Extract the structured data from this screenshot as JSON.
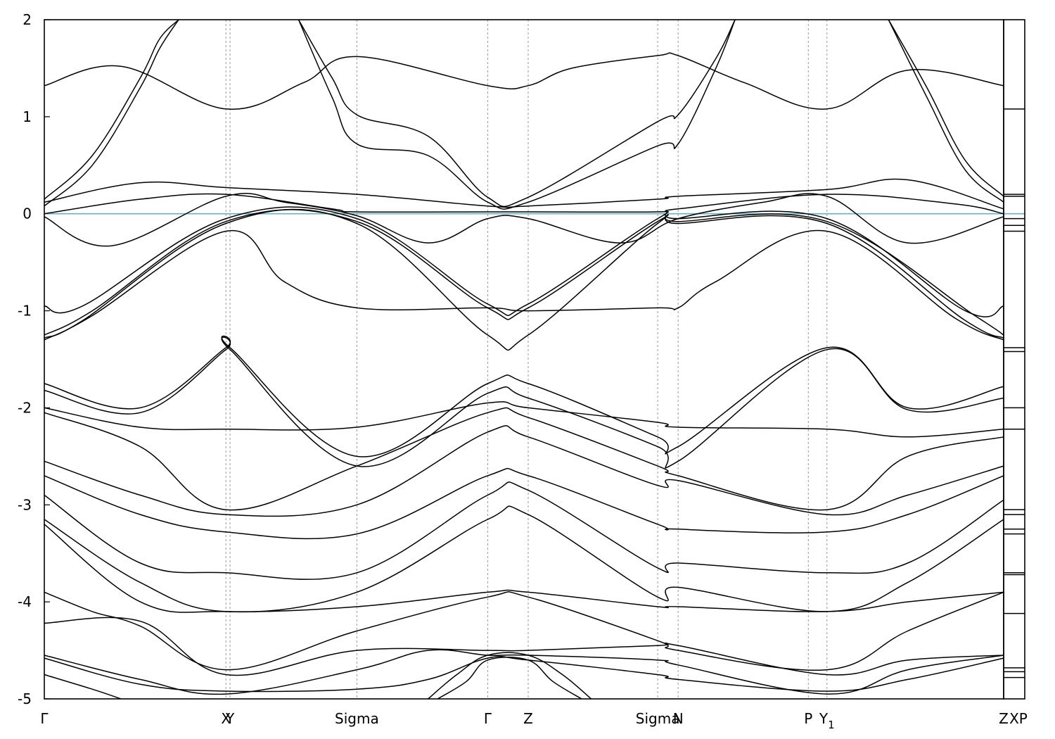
{
  "chart_data": {
    "type": "line",
    "title": "",
    "xlabel": "",
    "ylabel": "",
    "ylim": [
      -5,
      2
    ],
    "yticks": [
      2,
      1,
      0,
      -1,
      -2,
      -3,
      -4,
      -5
    ],
    "ytick_labels": [
      "2",
      "1",
      "0",
      "-1",
      "-2",
      "-3",
      "-4",
      "-5"
    ],
    "x_range": [
      0,
      1
    ],
    "kpoints": [
      {
        "label": "Γ",
        "x": 0.0
      },
      {
        "label": "X",
        "x": 0.1893
      },
      {
        "label": "Y",
        "x": 0.1936
      },
      {
        "label": "Sigma",
        "x": 0.3258
      },
      {
        "label": "Γ",
        "x": 0.4622
      },
      {
        "label": "Z",
        "x": 0.5044
      },
      {
        "label": "Sigma",
        "x": 0.6394
      },
      {
        "label": "N",
        "x": 0.6607
      },
      {
        "label": "P",
        "x": 0.7964
      },
      {
        "label": "Y",
        "label_sub": "1",
        "x": 0.8158
      },
      {
        "label": "Z",
        "x": 1.0
      }
    ],
    "side_panel_label": "XP",
    "side_panel_levels": [
      1.08,
      0.2,
      0.18,
      -0.05,
      -0.12,
      -0.18,
      -1.38,
      -1.42,
      -2.0,
      -2.22,
      -3.05,
      -3.1,
      -3.25,
      -3.3,
      -3.7,
      -3.72,
      -4.12,
      -4.68,
      -4.72,
      -4.78
    ],
    "fermi_level": 0,
    "series": [
      {
        "x": [
          0.0,
          0.05,
          0.1,
          0.12,
          0.14
        ],
        "y": [
          0.15,
          0.6,
          1.4,
          1.8,
          2.0
        ]
      },
      {
        "x": [
          0.0,
          0.05,
          0.1,
          0.12,
          0.14
        ],
        "y": [
          0.08,
          0.5,
          1.3,
          1.7,
          2.0
        ]
      },
      {
        "x": [
          0.0,
          0.08,
          0.1893,
          0.27,
          0.3258,
          0.4622,
          0.5044,
          0.55,
          0.6394,
          0.6607,
          0.73,
          0.8158,
          0.9,
          1.0
        ],
        "y": [
          1.32,
          1.52,
          1.08,
          1.35,
          1.62,
          1.32,
          1.32,
          1.5,
          1.63,
          1.63,
          1.35,
          1.08,
          1.48,
          1.32
        ]
      },
      {
        "x": [
          0.265,
          0.3,
          0.3258,
          0.4,
          0.4622,
          0.5044,
          0.6394,
          0.6607,
          0.7,
          0.72
        ],
        "y": [
          2.0,
          1.4,
          1.02,
          0.8,
          0.17,
          0.17,
          0.95,
          1.02,
          1.6,
          2.0
        ]
      },
      {
        "x": [
          0.265,
          0.3,
          0.3258,
          0.4,
          0.4622,
          0.5044,
          0.6394,
          0.6607,
          0.7,
          0.72
        ],
        "y": [
          2.0,
          1.2,
          0.72,
          0.6,
          0.12,
          0.12,
          0.7,
          0.72,
          1.5,
          2.0
        ]
      },
      {
        "x": [
          0.88,
          0.92,
          0.96,
          1.0
        ],
        "y": [
          2.0,
          1.2,
          0.45,
          0.12
        ]
      },
      {
        "x": [
          0.88,
          0.92,
          0.96,
          1.0
        ],
        "y": [
          2.0,
          1.3,
          0.55,
          0.18
        ]
      },
      {
        "x": [
          0.0,
          0.1,
          0.1893,
          0.3258,
          0.4622,
          0.5044,
          0.6394,
          0.6607,
          0.8158,
          0.9,
          1.0
        ],
        "y": [
          0.12,
          0.32,
          0.27,
          0.2,
          0.08,
          0.08,
          0.15,
          0.18,
          0.25,
          0.35,
          0.05
        ]
      },
      {
        "x": [
          0.0,
          0.07,
          0.1893,
          0.25,
          0.3258,
          0.4,
          0.4622,
          0.5044,
          0.6,
          0.6607,
          0.75,
          0.8158,
          0.9,
          1.0
        ],
        "y": [
          -0.03,
          -0.33,
          0.18,
          0.12,
          -0.02,
          -0.3,
          -0.05,
          -0.05,
          -0.3,
          -0.05,
          0.12,
          0.18,
          -0.3,
          -0.03
        ]
      },
      {
        "x": [
          0.0,
          0.1,
          0.1893,
          0.3,
          0.3258,
          0.4622,
          0.5044,
          0.6394,
          0.6607,
          0.8158,
          0.95,
          1.0
        ],
        "y": [
          0.0,
          0.15,
          0.2,
          0.05,
          0.02,
          0.02,
          0.02,
          0.02,
          0.05,
          0.2,
          0.1,
          0.0
        ]
      },
      {
        "x": [
          0.0,
          0.04,
          0.1893,
          0.3258,
          0.4622,
          0.5044,
          0.6394,
          0.6607,
          0.8158,
          0.96,
          1.0
        ],
        "y": [
          -0.95,
          -0.95,
          -0.05,
          -0.05,
          -0.93,
          -0.93,
          -0.05,
          -0.05,
          -0.05,
          -1.0,
          -0.95
        ]
      },
      {
        "x": [
          0.0,
          0.05,
          0.1893,
          0.3258,
          0.4622,
          0.5044,
          0.6394,
          0.6607,
          0.8158,
          0.97,
          1.0
        ],
        "y": [
          -1.25,
          -1.0,
          -0.08,
          -0.08,
          -0.97,
          -0.97,
          -0.08,
          -0.08,
          -0.08,
          -1.05,
          -1.25
        ]
      },
      {
        "x": [
          0.0,
          0.05,
          0.1893,
          0.25,
          0.3258,
          0.4622,
          0.5044,
          0.6394,
          0.6607,
          0.7,
          0.8158,
          0.95,
          1.0
        ],
        "y": [
          -1.3,
          -1.05,
          -0.18,
          -0.7,
          -0.97,
          -0.97,
          -1.0,
          -0.97,
          -0.97,
          -0.7,
          -0.18,
          -1.08,
          -1.3
        ]
      },
      {
        "x": [
          0.0,
          0.04,
          0.1893,
          0.3258,
          0.4622,
          0.5044,
          0.6394,
          0.6607,
          0.8158,
          0.96,
          1.0
        ],
        "y": [
          -1.28,
          -1.1,
          -0.1,
          -0.1,
          -1.25,
          -1.25,
          -0.1,
          -0.1,
          -0.1,
          -1.1,
          -1.28
        ]
      },
      {
        "x": [
          0.0,
          0.1,
          0.1893,
          0.1936,
          0.3258,
          0.4622,
          0.5044,
          0.6394,
          0.6607,
          0.8158,
          0.9,
          1.0
        ],
        "y": [
          -1.75,
          -2.0,
          -1.38,
          -1.38,
          -2.5,
          -1.75,
          -1.75,
          -2.3,
          -2.4,
          -1.38,
          -2.0,
          -1.78
        ]
      },
      {
        "x": [
          0.0,
          0.1,
          0.1893,
          0.1936,
          0.3258,
          0.4622,
          0.5044,
          0.6394,
          0.6607,
          0.8158,
          0.9,
          1.0
        ],
        "y": [
          -1.82,
          -2.05,
          -1.4,
          -1.4,
          -2.6,
          -1.85,
          -1.9,
          -2.4,
          -2.55,
          -1.4,
          -2.02,
          -1.9
        ]
      },
      {
        "x": [
          0.0,
          0.1,
          0.1893,
          0.3258,
          0.4622,
          0.5044,
          0.6394,
          0.6607,
          0.8158,
          0.9,
          1.0
        ],
        "y": [
          -2.0,
          -2.2,
          -2.22,
          -2.2,
          -1.95,
          -2.0,
          -2.15,
          -2.2,
          -2.22,
          -2.3,
          -2.22
        ]
      },
      {
        "x": [
          0.0,
          0.1,
          0.1893,
          0.3258,
          0.4622,
          0.5044,
          0.6394,
          0.6607,
          0.8158,
          0.9,
          1.0
        ],
        "y": [
          -2.05,
          -2.4,
          -3.05,
          -2.6,
          -2.05,
          -2.1,
          -2.6,
          -2.7,
          -3.05,
          -2.5,
          -2.3
        ]
      },
      {
        "x": [
          0.0,
          0.1,
          0.1893,
          0.3258,
          0.4622,
          0.5044,
          0.6394,
          0.6607,
          0.8158,
          0.9,
          1.0
        ],
        "y": [
          -2.55,
          -2.9,
          -3.1,
          -3.0,
          -2.25,
          -2.3,
          -2.8,
          -2.75,
          -3.1,
          -2.9,
          -2.6
        ]
      },
      {
        "x": [
          0.0,
          0.1,
          0.1893,
          0.3258,
          0.4622,
          0.5044,
          0.6394,
          0.6607,
          0.8158,
          0.9,
          1.0
        ],
        "y": [
          -2.7,
          -3.1,
          -3.28,
          -3.3,
          -2.7,
          -2.7,
          -3.2,
          -3.25,
          -3.28,
          -3.1,
          -2.7
        ]
      },
      {
        "x": [
          0.0,
          0.1,
          0.1893,
          0.3258,
          0.4622,
          0.5044,
          0.6394,
          0.6607,
          0.8158,
          0.9,
          1.0
        ],
        "y": [
          -2.9,
          -3.6,
          -3.7,
          -3.7,
          -2.9,
          -2.85,
          -3.65,
          -3.6,
          -3.7,
          -3.6,
          -2.95
        ]
      },
      {
        "x": [
          0.0,
          0.1,
          0.1893,
          0.3258,
          0.4622,
          0.5044,
          0.6394,
          0.6607,
          0.8158,
          0.9,
          1.0
        ],
        "y": [
          -3.15,
          -3.8,
          -4.1,
          -3.9,
          -3.15,
          -3.1,
          -3.95,
          -3.85,
          -4.1,
          -3.8,
          -3.15
        ]
      },
      {
        "x": [
          0.0,
          0.1,
          0.1893,
          0.3258,
          0.4622,
          0.5044,
          0.6394,
          0.6607,
          0.8158,
          0.9,
          1.0
        ],
        "y": [
          -3.2,
          -4.0,
          -4.1,
          -4.05,
          -3.9,
          -3.9,
          -4.05,
          -4.05,
          -4.1,
          -4.0,
          -3.9
        ]
      },
      {
        "x": [
          0.0,
          0.05,
          0.1,
          0.1893,
          0.3258,
          0.4622,
          0.5044,
          0.6394,
          0.6607,
          0.8158,
          0.9,
          1.0
        ],
        "y": [
          -3.9,
          -4.1,
          -4.25,
          -4.7,
          -4.3,
          -3.95,
          -3.95,
          -4.4,
          -4.5,
          -4.7,
          -4.3,
          -3.9
        ]
      },
      {
        "x": [
          0.0,
          0.1,
          0.1893,
          0.3258,
          0.4622,
          0.5044,
          0.6394,
          0.6607,
          0.8158,
          0.9,
          1.0
        ],
        "y": [
          -4.22,
          -4.2,
          -4.75,
          -4.5,
          -4.5,
          -4.5,
          -4.45,
          -4.45,
          -4.75,
          -4.6,
          -4.55
        ]
      },
      {
        "x": [
          0.0,
          0.1,
          0.1893,
          0.3258,
          0.4,
          0.4622,
          0.5044,
          0.6394,
          0.6607,
          0.8158,
          0.9,
          1.0
        ],
        "y": [
          -4.55,
          -4.8,
          -4.95,
          -4.7,
          -4.5,
          -4.55,
          -4.55,
          -4.6,
          -4.65,
          -4.95,
          -4.7,
          -4.55
        ]
      },
      {
        "x": [
          0.0,
          0.1,
          0.1893,
          0.3258,
          0.4,
          0.4622,
          0.5044,
          0.6394,
          0.6607,
          0.8158,
          0.9,
          1.0
        ],
        "y": [
          -4.58,
          -4.85,
          -4.92,
          -4.9,
          -4.8,
          -4.58,
          -4.6,
          -4.75,
          -4.8,
          -4.92,
          -4.8,
          -4.58
        ]
      },
      {
        "x": [
          0.0,
          0.05,
          0.08
        ],
        "y": [
          -4.75,
          -4.9,
          -5.0
        ]
      },
      {
        "x": [
          0.4,
          0.43,
          0.4622,
          0.5044,
          0.54,
          0.57
        ],
        "y": [
          -5.0,
          -4.75,
          -4.55,
          -4.55,
          -4.75,
          -5.0
        ]
      },
      {
        "x": [
          0.41,
          0.44,
          0.4622,
          0.5044,
          0.53,
          0.56
        ],
        "y": [
          -5.0,
          -4.82,
          -4.6,
          -4.6,
          -4.82,
          -5.0
        ]
      }
    ]
  }
}
